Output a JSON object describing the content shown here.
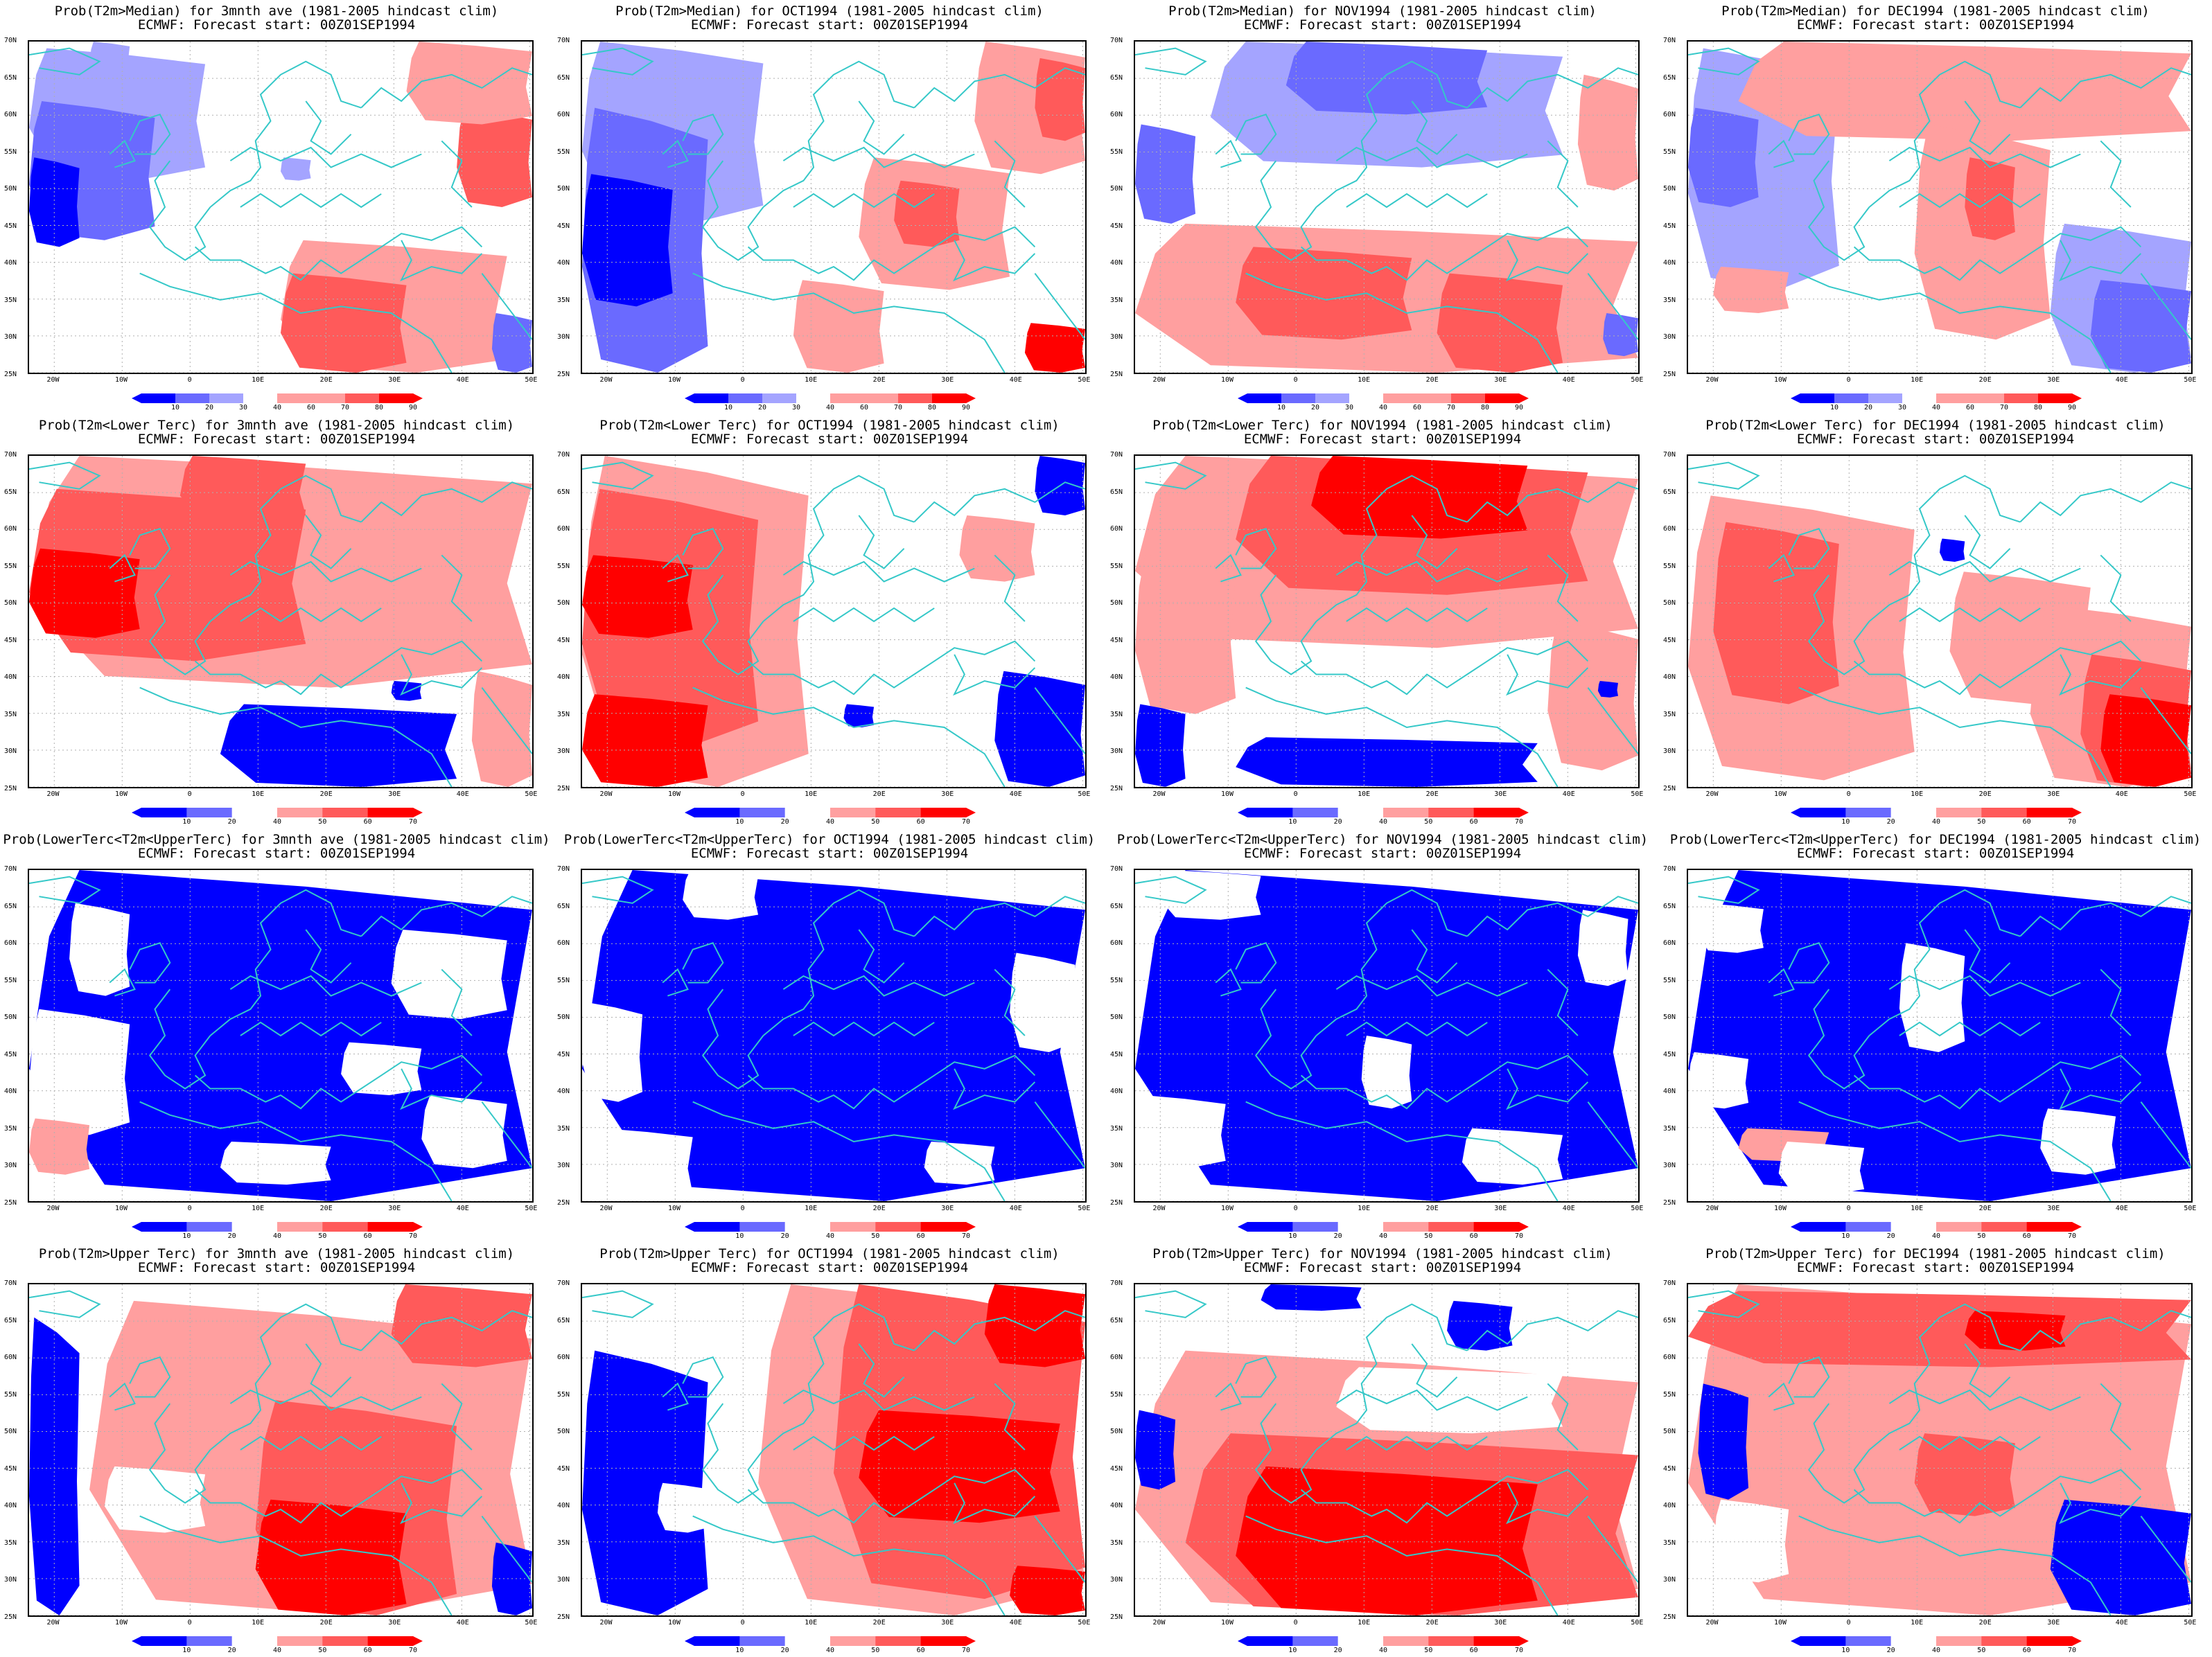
{
  "colors": {
    "blue_dark": "#0000ff",
    "blue_mid": "#6a6aff",
    "blue_light": "#a4a4ff",
    "red_light": "#ff9f9f",
    "red_mid": "#ff5a5a",
    "red_dark": "#ff0000",
    "coast": "#35c8c8"
  },
  "lat_labels": [
    "70N",
    "65N",
    "60N",
    "55N",
    "50N",
    "45N",
    "40N",
    "35N",
    "30N",
    "25N"
  ],
  "lon_labels": [
    "20W",
    "10W",
    "0",
    "10E",
    "20E",
    "30E",
    "40E",
    "50E"
  ],
  "forecast_line": "ECMWF: Forecast start: 00Z01SEP1994",
  "colorbars": {
    "median": [
      "10",
      "20",
      "30",
      "40",
      "60",
      "70",
      "80",
      "90"
    ],
    "tercile": [
      "10",
      "20",
      "40",
      "50",
      "60",
      "70"
    ]
  },
  "panels": [
    {
      "title": "Prob(T2m>Median) for 3mnth ave (1981-2005 hindcast clim)",
      "bar": "median",
      "blobs": [
        [
          "#a4a4ff",
          0.0,
          0.02,
          0.35,
          0.42
        ],
        [
          "#6a6aff",
          0.0,
          0.18,
          0.25,
          0.6
        ],
        [
          "#0000ff",
          0.0,
          0.35,
          0.1,
          0.62
        ],
        [
          "#a4a4ff",
          0.12,
          0.0,
          0.2,
          0.12
        ],
        [
          "#ff9f9f",
          0.5,
          0.6,
          0.95,
          1.0
        ],
        [
          "#ff5a5a",
          0.5,
          0.7,
          0.75,
          1.0
        ],
        [
          "#ff5a5a",
          0.85,
          0.2,
          1.0,
          0.5
        ],
        [
          "#ff9f9f",
          0.75,
          0.0,
          1.0,
          0.25
        ],
        [
          "#6a6aff",
          0.92,
          0.82,
          1.0,
          1.0
        ],
        [
          "#a4a4ff",
          0.5,
          0.35,
          0.56,
          0.42
        ]
      ]
    },
    {
      "title": "Prob(T2m>Median) for OCT1994 (1981-2005 hindcast clim)",
      "bar": "median",
      "blobs": [
        [
          "#a4a4ff",
          0.0,
          0.0,
          0.36,
          0.55
        ],
        [
          "#6a6aff",
          0.0,
          0.2,
          0.25,
          1.0
        ],
        [
          "#0000ff",
          0.0,
          0.4,
          0.18,
          0.8
        ],
        [
          "#ff9f9f",
          0.55,
          0.35,
          0.85,
          0.75
        ],
        [
          "#ff5a5a",
          0.62,
          0.42,
          0.75,
          0.62
        ],
        [
          "#ff9f9f",
          0.78,
          0.0,
          1.0,
          0.4
        ],
        [
          "#ff5a5a",
          0.9,
          0.05,
          1.0,
          0.3
        ],
        [
          "#ff0000",
          0.88,
          0.85,
          1.0,
          1.0
        ],
        [
          "#ff9f9f",
          0.42,
          0.72,
          0.6,
          1.0
        ]
      ]
    },
    {
      "title": "Prob(T2m>Median) for NOV1994 (1981-2005 hindcast clim)",
      "bar": "median",
      "blobs": [
        [
          "#a4a4ff",
          0.15,
          0.0,
          0.85,
          0.38
        ],
        [
          "#6a6aff",
          0.3,
          0.0,
          0.7,
          0.22
        ],
        [
          "#6a6aff",
          0.0,
          0.25,
          0.12,
          0.55
        ],
        [
          "#ff9f9f",
          0.0,
          0.55,
          1.0,
          1.0
        ],
        [
          "#ff5a5a",
          0.2,
          0.62,
          0.55,
          0.9
        ],
        [
          "#ff5a5a",
          0.6,
          0.7,
          0.85,
          1.0
        ],
        [
          "#ff9f9f",
          0.88,
          0.1,
          1.0,
          0.45
        ],
        [
          "#6a6aff",
          0.93,
          0.82,
          1.0,
          0.95
        ]
      ]
    },
    {
      "title": "Prob(T2m>Median) for DEC1994 (1981-2005 hindcast clim)",
      "bar": "median",
      "blobs": [
        [
          "#a4a4ff",
          0.0,
          0.02,
          0.3,
          0.75
        ],
        [
          "#6a6aff",
          0.0,
          0.2,
          0.14,
          0.5
        ],
        [
          "#ff9f9f",
          0.1,
          0.0,
          1.0,
          0.3
        ],
        [
          "#ff9f9f",
          0.45,
          0.25,
          0.72,
          0.9
        ],
        [
          "#ff5a5a",
          0.55,
          0.35,
          0.65,
          0.6
        ],
        [
          "#a4a4ff",
          0.72,
          0.55,
          1.0,
          1.0
        ],
        [
          "#6a6aff",
          0.8,
          0.72,
          1.0,
          1.0
        ],
        [
          "#ff9f9f",
          0.05,
          0.68,
          0.2,
          0.82
        ]
      ]
    },
    {
      "title": "Prob(T2m<Lower Terc) for 3mnth ave (1981-2005 hindcast clim)",
      "bar": "tercile",
      "blobs": [
        [
          "#ff9f9f",
          0.0,
          0.0,
          1.0,
          0.7
        ],
        [
          "#ff5a5a",
          0.0,
          0.1,
          0.55,
          0.62
        ],
        [
          "#ff0000",
          0.0,
          0.28,
          0.22,
          0.55
        ],
        [
          "#ff5a5a",
          0.3,
          0.0,
          0.55,
          0.2
        ],
        [
          "#ff9f9f",
          0.88,
          0.65,
          1.0,
          1.0
        ],
        [
          "#0000ff",
          0.38,
          0.75,
          0.85,
          1.0
        ],
        [
          "#0000ff",
          0.72,
          0.68,
          0.78,
          0.74
        ]
      ]
    },
    {
      "title": "Prob(T2m<Lower Terc) for OCT1994 (1981-2005 hindcast clim)",
      "bar": "tercile",
      "blobs": [
        [
          "#ff9f9f",
          0.0,
          0.0,
          0.45,
          1.0
        ],
        [
          "#ff5a5a",
          0.0,
          0.1,
          0.35,
          0.88
        ],
        [
          "#ff0000",
          0.0,
          0.3,
          0.22,
          0.55
        ],
        [
          "#ff0000",
          0.0,
          0.72,
          0.25,
          1.0
        ],
        [
          "#ff9f9f",
          0.75,
          0.18,
          0.9,
          0.38
        ],
        [
          "#0000ff",
          0.9,
          0.0,
          1.0,
          0.18
        ],
        [
          "#0000ff",
          0.82,
          0.65,
          1.0,
          1.0
        ],
        [
          "#0000ff",
          0.52,
          0.75,
          0.58,
          0.82
        ]
      ]
    },
    {
      "title": "Prob(T2m<Lower Terc) for NOV1994 (1981-2005 hindcast clim)",
      "bar": "tercile",
      "blobs": [
        [
          "#ff9f9f",
          0.0,
          0.0,
          1.0,
          0.58
        ],
        [
          "#ff5a5a",
          0.2,
          0.0,
          0.9,
          0.42
        ],
        [
          "#ff0000",
          0.35,
          0.0,
          0.78,
          0.25
        ],
        [
          "#ff9f9f",
          0.0,
          0.3,
          0.2,
          0.78
        ],
        [
          "#ff9f9f",
          0.82,
          0.5,
          1.0,
          0.95
        ],
        [
          "#0000ff",
          0.0,
          0.75,
          0.1,
          1.0
        ],
        [
          "#0000ff",
          0.2,
          0.85,
          0.8,
          1.0
        ],
        [
          "#0000ff",
          0.92,
          0.68,
          0.96,
          0.73
        ]
      ]
    },
    {
      "title": "Prob(T2m<Lower Terc) for DEC1994 (1981-2005 hindcast clim)",
      "bar": "tercile",
      "blobs": [
        [
          "#ff9f9f",
          0.0,
          0.12,
          0.45,
          0.98
        ],
        [
          "#ff5a5a",
          0.05,
          0.2,
          0.3,
          0.75
        ],
        [
          "#ff9f9f",
          0.52,
          0.35,
          0.8,
          0.75
        ],
        [
          "#ff9f9f",
          0.68,
          0.45,
          1.0,
          1.0
        ],
        [
          "#ff5a5a",
          0.78,
          0.6,
          1.0,
          1.0
        ],
        [
          "#ff0000",
          0.82,
          0.72,
          1.0,
          1.0
        ],
        [
          "#0000ff",
          0.5,
          0.25,
          0.55,
          0.32
        ]
      ]
    },
    {
      "title": "Prob(LowerTerc<T2m<UpperTerc) for 3mnth ave (1981-2005 hindcast clim)",
      "bar": "tercile",
      "blobs": [
        [
          "#0000ff",
          0.0,
          0.0,
          1.0,
          1.0
        ],
        [
          "#ffffff",
          0.0,
          0.42,
          0.2,
          0.8
        ],
        [
          "#ffffff",
          0.08,
          0.1,
          0.2,
          0.38
        ],
        [
          "#ffffff",
          0.72,
          0.18,
          0.95,
          0.45
        ],
        [
          "#ffffff",
          0.62,
          0.52,
          0.78,
          0.68
        ],
        [
          "#ff9f9f",
          0.0,
          0.75,
          0.12,
          0.92
        ],
        [
          "#ffffff",
          0.38,
          0.82,
          0.6,
          0.95
        ],
        [
          "#ffffff",
          0.78,
          0.68,
          0.95,
          0.9
        ]
      ]
    },
    {
      "title": "Prob(LowerTerc<T2m<UpperTerc) for OCT1994 (1981-2005 hindcast clim)",
      "bar": "tercile",
      "blobs": [
        [
          "#0000ff",
          0.0,
          0.0,
          1.0,
          1.0
        ],
        [
          "#ffffff",
          0.0,
          0.4,
          0.12,
          0.7
        ],
        [
          "#ffffff",
          0.2,
          0.0,
          0.35,
          0.15
        ],
        [
          "#ffffff",
          0.02,
          0.78,
          0.22,
          1.0
        ],
        [
          "#ffffff",
          0.85,
          0.25,
          0.98,
          0.55
        ],
        [
          "#ffffff",
          0.68,
          0.82,
          0.82,
          0.95
        ]
      ]
    },
    {
      "title": "Prob(LowerTerc<T2m<UpperTerc) for NOV1994 (1981-2005 hindcast clim)",
      "bar": "tercile",
      "blobs": [
        [
          "#0000ff",
          0.0,
          0.0,
          1.0,
          1.0
        ],
        [
          "#ffffff",
          0.05,
          0.0,
          0.25,
          0.15
        ],
        [
          "#ffffff",
          0.45,
          0.5,
          0.55,
          0.72
        ],
        [
          "#ffffff",
          0.0,
          0.68,
          0.18,
          0.9
        ],
        [
          "#ffffff",
          0.65,
          0.78,
          0.85,
          0.95
        ],
        [
          "#ffffff",
          0.88,
          0.12,
          0.98,
          0.35
        ]
      ]
    },
    {
      "title": "Prob(LowerTerc<T2m<UpperTerc) for DEC1994 (1981-2005 hindcast clim)",
      "bar": "tercile",
      "blobs": [
        [
          "#0000ff",
          0.0,
          0.0,
          1.0,
          1.0
        ],
        [
          "#ffffff",
          0.02,
          0.1,
          0.15,
          0.25
        ],
        [
          "#ffffff",
          0.42,
          0.22,
          0.55,
          0.55
        ],
        [
          "#ffffff",
          0.0,
          0.55,
          0.12,
          0.72
        ],
        [
          "#ffffff",
          0.7,
          0.72,
          0.85,
          0.92
        ],
        [
          "#ff9f9f",
          0.1,
          0.78,
          0.28,
          0.88
        ],
        [
          "#ffffff",
          0.18,
          0.82,
          0.35,
          0.98
        ]
      ]
    },
    {
      "title": "Prob(T2m>Upper Terc) for 3mnth ave (1981-2005 hindcast clim)",
      "bar": "tercile",
      "blobs": [
        [
          "#0000ff",
          0.0,
          0.1,
          0.1,
          1.0
        ],
        [
          "#ff9f9f",
          0.12,
          0.05,
          1.0,
          1.0
        ],
        [
          "#ff5a5a",
          0.45,
          0.35,
          0.85,
          1.0
        ],
        [
          "#ff0000",
          0.45,
          0.65,
          0.75,
          1.0
        ],
        [
          "#ffffff",
          0.15,
          0.55,
          0.35,
          0.75
        ],
        [
          "#ff5a5a",
          0.72,
          0.0,
          1.0,
          0.25
        ],
        [
          "#0000ff",
          0.92,
          0.78,
          1.0,
          1.0
        ]
      ]
    },
    {
      "title": "Prob(T2m>Upper Terc) for OCT1994 (1981-2005 hindcast clim)",
      "bar": "tercile",
      "blobs": [
        [
          "#0000ff",
          0.0,
          0.2,
          0.25,
          1.0
        ],
        [
          "#ff9f9f",
          0.35,
          0.0,
          1.0,
          1.0
        ],
        [
          "#ff5a5a",
          0.5,
          0.0,
          1.0,
          0.95
        ],
        [
          "#ff0000",
          0.55,
          0.38,
          0.95,
          0.72
        ],
        [
          "#ff0000",
          0.8,
          0.0,
          1.0,
          0.25
        ],
        [
          "#ff0000",
          0.85,
          0.85,
          1.0,
          1.0
        ],
        [
          "#ffffff",
          0.15,
          0.6,
          0.25,
          0.75
        ]
      ]
    },
    {
      "title": "Prob(T2m>Upper Terc) for NOV1994 (1981-2005 hindcast clim)",
      "bar": "tercile",
      "blobs": [
        [
          "#ff9f9f",
          0.0,
          0.2,
          1.0,
          1.0
        ],
        [
          "#ff5a5a",
          0.1,
          0.45,
          1.0,
          1.0
        ],
        [
          "#ff0000",
          0.2,
          0.55,
          0.8,
          1.0
        ],
        [
          "#0000ff",
          0.25,
          0.0,
          0.45,
          0.08
        ],
        [
          "#0000ff",
          0.62,
          0.05,
          0.75,
          0.2
        ],
        [
          "#0000ff",
          0.0,
          0.38,
          0.08,
          0.62
        ],
        [
          "#ffffff",
          0.4,
          0.25,
          0.85,
          0.45
        ]
      ]
    },
    {
      "title": "Prob(T2m>Upper Terc) for DEC1994 (1981-2005 hindcast clim)",
      "bar": "tercile",
      "blobs": [
        [
          "#ff9f9f",
          0.0,
          0.0,
          1.0,
          1.0
        ],
        [
          "#ff5a5a",
          0.0,
          0.02,
          1.0,
          0.25
        ],
        [
          "#ff0000",
          0.55,
          0.08,
          0.75,
          0.2
        ],
        [
          "#ff5a5a",
          0.45,
          0.45,
          0.65,
          0.7
        ],
        [
          "#0000ff",
          0.02,
          0.3,
          0.12,
          0.65
        ],
        [
          "#0000ff",
          0.72,
          0.65,
          1.0,
          1.0
        ],
        [
          "#ffffff",
          0.05,
          0.65,
          0.2,
          0.9
        ]
      ]
    }
  ]
}
